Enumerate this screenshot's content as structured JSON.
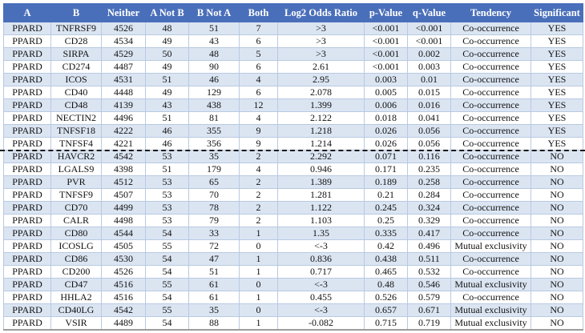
{
  "colors": {
    "header_bg": "#4a6fba",
    "header_text": "#ffffff",
    "band_row_bg": "#dbe5f2",
    "grid_line": "#b9c9e2",
    "outer_line": "#9c9c9c",
    "text": "#111111",
    "separator": "#1a1a1a"
  },
  "table": {
    "columns": [
      "A",
      "B",
      "Neither",
      "A Not B",
      "B Not A",
      "Both",
      "Log2 Odds Ratio",
      "p-Value",
      "q-Value",
      "Tendency",
      "Significant"
    ],
    "column_keys": [
      "a",
      "b",
      "neither",
      "a-not-b",
      "b-not-a",
      "both",
      "log2-odds-ratio",
      "p-value",
      "q-value",
      "tendency",
      "significant"
    ],
    "separator_after_row": 10,
    "rows": [
      [
        "PPARD",
        "TNFRSF9",
        "4526",
        "48",
        "51",
        "7",
        ">3",
        "<0.001",
        "<0.001",
        "Co-occurrence",
        "YES"
      ],
      [
        "PPARD",
        "CD28",
        "4534",
        "49",
        "43",
        "6",
        ">3",
        "<0.001",
        "<0.001",
        "Co-occurrence",
        "YES"
      ],
      [
        "PPARD",
        "SIRPA",
        "4529",
        "50",
        "48",
        "5",
        ">3",
        "<0.001",
        "0.002",
        "Co-occurrence",
        "YES"
      ],
      [
        "PPARD",
        "CD274",
        "4487",
        "49",
        "90",
        "6",
        "2.61",
        "<0.001",
        "0.003",
        "Co-occurrence",
        "YES"
      ],
      [
        "PPARD",
        "ICOS",
        "4531",
        "51",
        "46",
        "4",
        "2.95",
        "0.003",
        "0.01",
        "Co-occurrence",
        "YES"
      ],
      [
        "PPARD",
        "CD40",
        "4448",
        "49",
        "129",
        "6",
        "2.078",
        "0.005",
        "0.015",
        "Co-occurrence",
        "YES"
      ],
      [
        "PPARD",
        "CD48",
        "4139",
        "43",
        "438",
        "12",
        "1.399",
        "0.006",
        "0.016",
        "Co-occurrence",
        "YES"
      ],
      [
        "PPARD",
        "NECTIN2",
        "4496",
        "51",
        "81",
        "4",
        "2.122",
        "0.018",
        "0.041",
        "Co-occurrence",
        "YES"
      ],
      [
        "PPARD",
        "TNFSF18",
        "4222",
        "46",
        "355",
        "9",
        "1.218",
        "0.026",
        "0.056",
        "Co-occurrence",
        "YES"
      ],
      [
        "PPARD",
        "TNFSF4",
        "4221",
        "46",
        "356",
        "9",
        "1.214",
        "0.026",
        "0.056",
        "Co-occurrence",
        "YES"
      ],
      [
        "PPARD",
        "HAVCR2",
        "4542",
        "53",
        "35",
        "2",
        "2.292",
        "0.071",
        "0.116",
        "Co-occurrence",
        "NO"
      ],
      [
        "PPARD",
        "LGALS9",
        "4398",
        "51",
        "179",
        "4",
        "0.946",
        "0.171",
        "0.235",
        "Co-occurrence",
        "NO"
      ],
      [
        "PPARD",
        "PVR",
        "4512",
        "53",
        "65",
        "2",
        "1.389",
        "0.189",
        "0.258",
        "Co-occurrence",
        "NO"
      ],
      [
        "PPARD",
        "TNFSF9",
        "4507",
        "53",
        "70",
        "2",
        "1.281",
        "0.21",
        "0.284",
        "Co-occurrence",
        "NO"
      ],
      [
        "PPARD",
        "CD70",
        "4499",
        "53",
        "78",
        "2",
        "1.122",
        "0.245",
        "0.324",
        "Co-occurrence",
        "NO"
      ],
      [
        "PPARD",
        "CALR",
        "4498",
        "53",
        "79",
        "2",
        "1.103",
        "0.25",
        "0.329",
        "Co-occurrence",
        "NO"
      ],
      [
        "PPARD",
        "CD80",
        "4544",
        "54",
        "33",
        "1",
        "1.35",
        "0.335",
        "0.417",
        "Co-occurrence",
        "NO"
      ],
      [
        "PPARD",
        "ICOSLG",
        "4505",
        "55",
        "72",
        "0",
        "<-3",
        "0.42",
        "0.496",
        "Mutual exclusivity",
        "NO"
      ],
      [
        "PPARD",
        "CD86",
        "4530",
        "54",
        "47",
        "1",
        "0.836",
        "0.438",
        "0.511",
        "Co-occurrence",
        "NO"
      ],
      [
        "PPARD",
        "CD200",
        "4526",
        "54",
        "51",
        "1",
        "0.717",
        "0.465",
        "0.532",
        "Co-occurrence",
        "NO"
      ],
      [
        "PPARD",
        "CD47",
        "4516",
        "55",
        "61",
        "0",
        "<-3",
        "0.48",
        "0.546",
        "Mutual exclusivity",
        "NO"
      ],
      [
        "PPARD",
        "HHLA2",
        "4516",
        "54",
        "61",
        "1",
        "0.455",
        "0.526",
        "0.579",
        "Co-occurrence",
        "NO"
      ],
      [
        "PPARD",
        "CD40LG",
        "4542",
        "55",
        "35",
        "0",
        "<-3",
        "0.657",
        "0.671",
        "Mutual exclusivity",
        "NO"
      ],
      [
        "PPARD",
        "VSIR",
        "4489",
        "54",
        "88",
        "1",
        "-0.082",
        "0.715",
        "0.719",
        "Mutual exclusivity",
        "NO"
      ]
    ]
  }
}
